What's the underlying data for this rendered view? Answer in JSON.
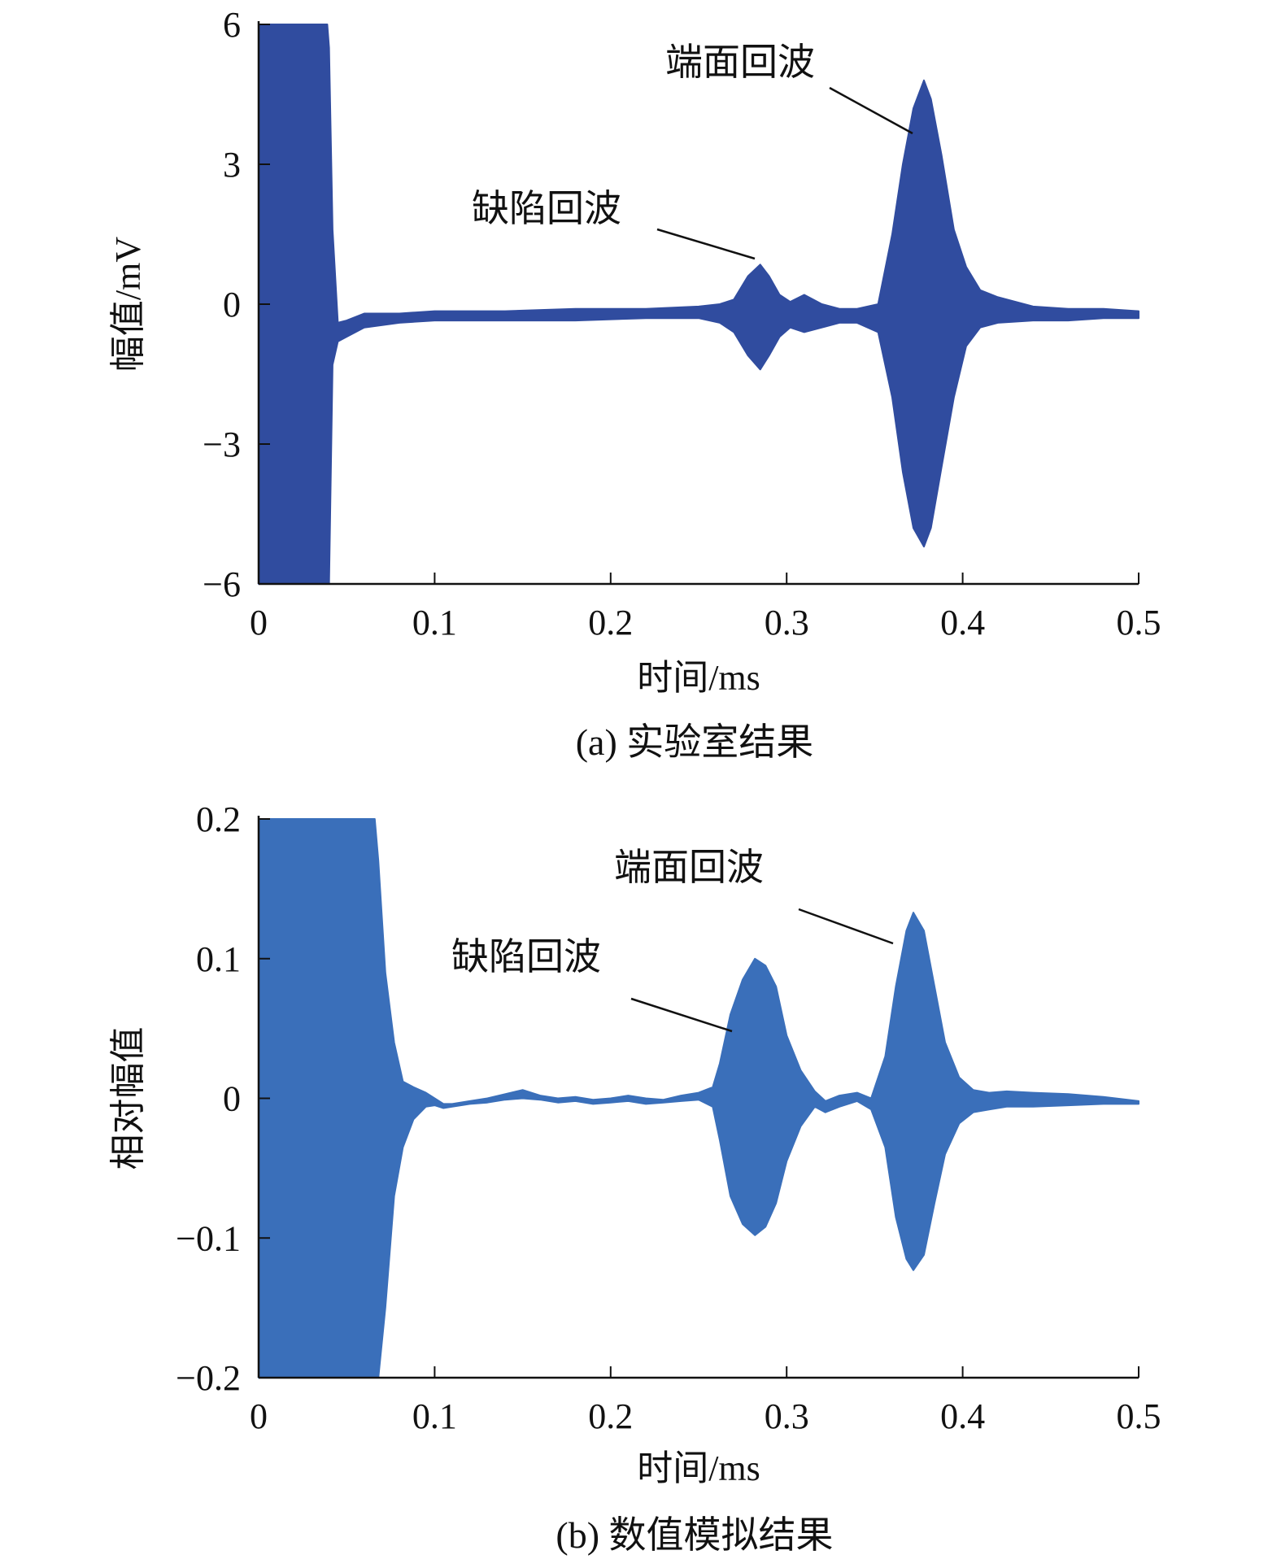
{
  "colors": {
    "panel_a": "#304c9f",
    "panel_b": "#3a6fba",
    "axis": "#111111"
  },
  "chart_data": [
    {
      "id": "a",
      "type": "area",
      "caption": "(a) 实验室结果",
      "xlabel": "时间/ms",
      "ylabel": "幅值/mV",
      "xlim": [
        0,
        0.5
      ],
      "ylim": [
        -6,
        6
      ],
      "xticks": [
        0,
        0.1,
        0.2,
        0.3,
        0.4,
        0.5
      ],
      "xtick_labels": [
        "0",
        "0.1",
        "0.2",
        "0.3",
        "0.4",
        "0.5"
      ],
      "yticks": [
        6,
        3,
        0,
        -3,
        -6
      ],
      "ytick_labels": [
        "6",
        "3",
        "0",
        "−3",
        "−6"
      ],
      "grid": false,
      "color": "#304c9f",
      "series": [
        {
          "x": [
            0,
            0.002,
            0.01,
            0.02,
            0.03,
            0.039,
            0.04,
            0.042,
            0.045,
            0.05,
            0.06,
            0.08,
            0.1,
            0.14,
            0.18,
            0.22,
            0.25,
            0.262,
            0.27,
            0.278,
            0.285,
            0.29,
            0.296,
            0.302,
            0.31,
            0.32,
            0.33,
            0.34,
            0.352,
            0.36,
            0.366,
            0.372,
            0.378,
            0.382,
            0.388,
            0.395,
            0.402,
            0.41,
            0.42,
            0.44,
            0.46,
            0.48,
            0.5
          ],
          "upper": [
            6,
            6,
            6,
            6,
            6,
            6,
            5.5,
            1.6,
            -0.4,
            -0.35,
            -0.2,
            -0.2,
            -0.15,
            -0.15,
            -0.1,
            -0.1,
            -0.05,
            0.0,
            0.1,
            0.6,
            0.85,
            0.6,
            0.2,
            0.05,
            0.2,
            0.0,
            -0.1,
            -0.1,
            0.0,
            1.5,
            3.0,
            4.2,
            4.8,
            4.4,
            3.2,
            1.6,
            0.8,
            0.3,
            0.15,
            -0.05,
            -0.1,
            -0.1,
            -0.15
          ],
          "lower": [
            -6,
            -6,
            -6,
            -6,
            -6,
            -6,
            -6,
            -1.3,
            -0.8,
            -0.7,
            -0.5,
            -0.4,
            -0.35,
            -0.35,
            -0.35,
            -0.3,
            -0.3,
            -0.4,
            -0.6,
            -1.1,
            -1.4,
            -1.1,
            -0.7,
            -0.5,
            -0.6,
            -0.5,
            -0.4,
            -0.4,
            -0.6,
            -2.0,
            -3.6,
            -4.8,
            -5.2,
            -4.8,
            -3.5,
            -2.0,
            -0.9,
            -0.5,
            -0.4,
            -0.35,
            -0.35,
            -0.3,
            -0.3
          ]
        }
      ],
      "annotations": [
        {
          "text": "缺陷回波",
          "x": 0.175,
          "y": 1.75,
          "arrow_to": [
            0.283,
            0.95
          ]
        },
        {
          "text": "端面回波",
          "x": 0.28,
          "y": 4.9,
          "arrow_to": [
            0.373,
            3.7
          ]
        }
      ]
    },
    {
      "id": "b",
      "type": "area",
      "caption": "(b) 数值模拟结果",
      "xlabel": "时间/ms",
      "ylabel": "相对幅值",
      "xlim": [
        0,
        0.5
      ],
      "ylim": [
        -0.2,
        0.2
      ],
      "xticks": [
        0,
        0.1,
        0.2,
        0.3,
        0.4,
        0.5
      ],
      "xtick_labels": [
        "0",
        "0.1",
        "0.2",
        "0.3",
        "0.4",
        "0.5"
      ],
      "yticks": [
        0.2,
        0.1,
        0,
        -0.1,
        -0.2
      ],
      "ytick_labels": [
        "0.2",
        "0.1",
        "0",
        "−0.1",
        "−0.2"
      ],
      "grid": false,
      "color": "#3a6fba",
      "series": [
        {
          "x": [
            0,
            0.01,
            0.03,
            0.05,
            0.066,
            0.068,
            0.072,
            0.077,
            0.082,
            0.088,
            0.095,
            0.1,
            0.105,
            0.11,
            0.12,
            0.13,
            0.14,
            0.15,
            0.16,
            0.17,
            0.18,
            0.19,
            0.2,
            0.21,
            0.22,
            0.23,
            0.24,
            0.25,
            0.258,
            0.262,
            0.268,
            0.275,
            0.282,
            0.288,
            0.294,
            0.3,
            0.308,
            0.316,
            0.322,
            0.33,
            0.34,
            0.348,
            0.356,
            0.362,
            0.368,
            0.372,
            0.378,
            0.384,
            0.39,
            0.398,
            0.406,
            0.415,
            0.425,
            0.44,
            0.46,
            0.48,
            0.5
          ],
          "upper": [
            0.2,
            0.2,
            0.2,
            0.2,
            0.2,
            0.17,
            0.09,
            0.04,
            0.012,
            0.008,
            0.004,
            0.0,
            -0.004,
            -0.004,
            -0.002,
            0.0,
            0.003,
            0.006,
            0.002,
            0.0,
            0.001,
            -0.001,
            0.0,
            0.002,
            0.0,
            -0.001,
            0.002,
            0.004,
            0.008,
            0.025,
            0.06,
            0.085,
            0.1,
            0.095,
            0.08,
            0.045,
            0.02,
            0.005,
            -0.002,
            0.002,
            0.004,
            0.0,
            0.03,
            0.08,
            0.12,
            0.133,
            0.12,
            0.08,
            0.04,
            0.015,
            0.006,
            0.004,
            0.005,
            0.004,
            0.003,
            0.001,
            -0.002
          ],
          "lower": [
            -0.2,
            -0.2,
            -0.2,
            -0.2,
            -0.2,
            -0.2,
            -0.15,
            -0.07,
            -0.035,
            -0.015,
            -0.006,
            -0.005,
            -0.007,
            -0.006,
            -0.004,
            -0.003,
            -0.001,
            0.0,
            -0.001,
            -0.003,
            -0.002,
            -0.004,
            -0.003,
            -0.002,
            -0.004,
            -0.003,
            -0.002,
            -0.001,
            -0.006,
            -0.03,
            -0.07,
            -0.09,
            -0.098,
            -0.092,
            -0.075,
            -0.045,
            -0.02,
            -0.006,
            -0.01,
            -0.006,
            -0.002,
            -0.008,
            -0.035,
            -0.085,
            -0.115,
            -0.123,
            -0.112,
            -0.075,
            -0.04,
            -0.018,
            -0.01,
            -0.008,
            -0.006,
            -0.006,
            -0.005,
            -0.004,
            -0.004
          ]
        }
      ],
      "annotations": [
        {
          "text": "缺陷回波",
          "x": 0.11,
          "y": 0.19,
          "arrow_to": [
            0.27,
            0.094
          ]
        },
        {
          "text": "端面回波",
          "x": 0.205,
          "y": 0.315,
          "arrow_to": [
            0.365,
            0.225
          ]
        }
      ]
    }
  ]
}
